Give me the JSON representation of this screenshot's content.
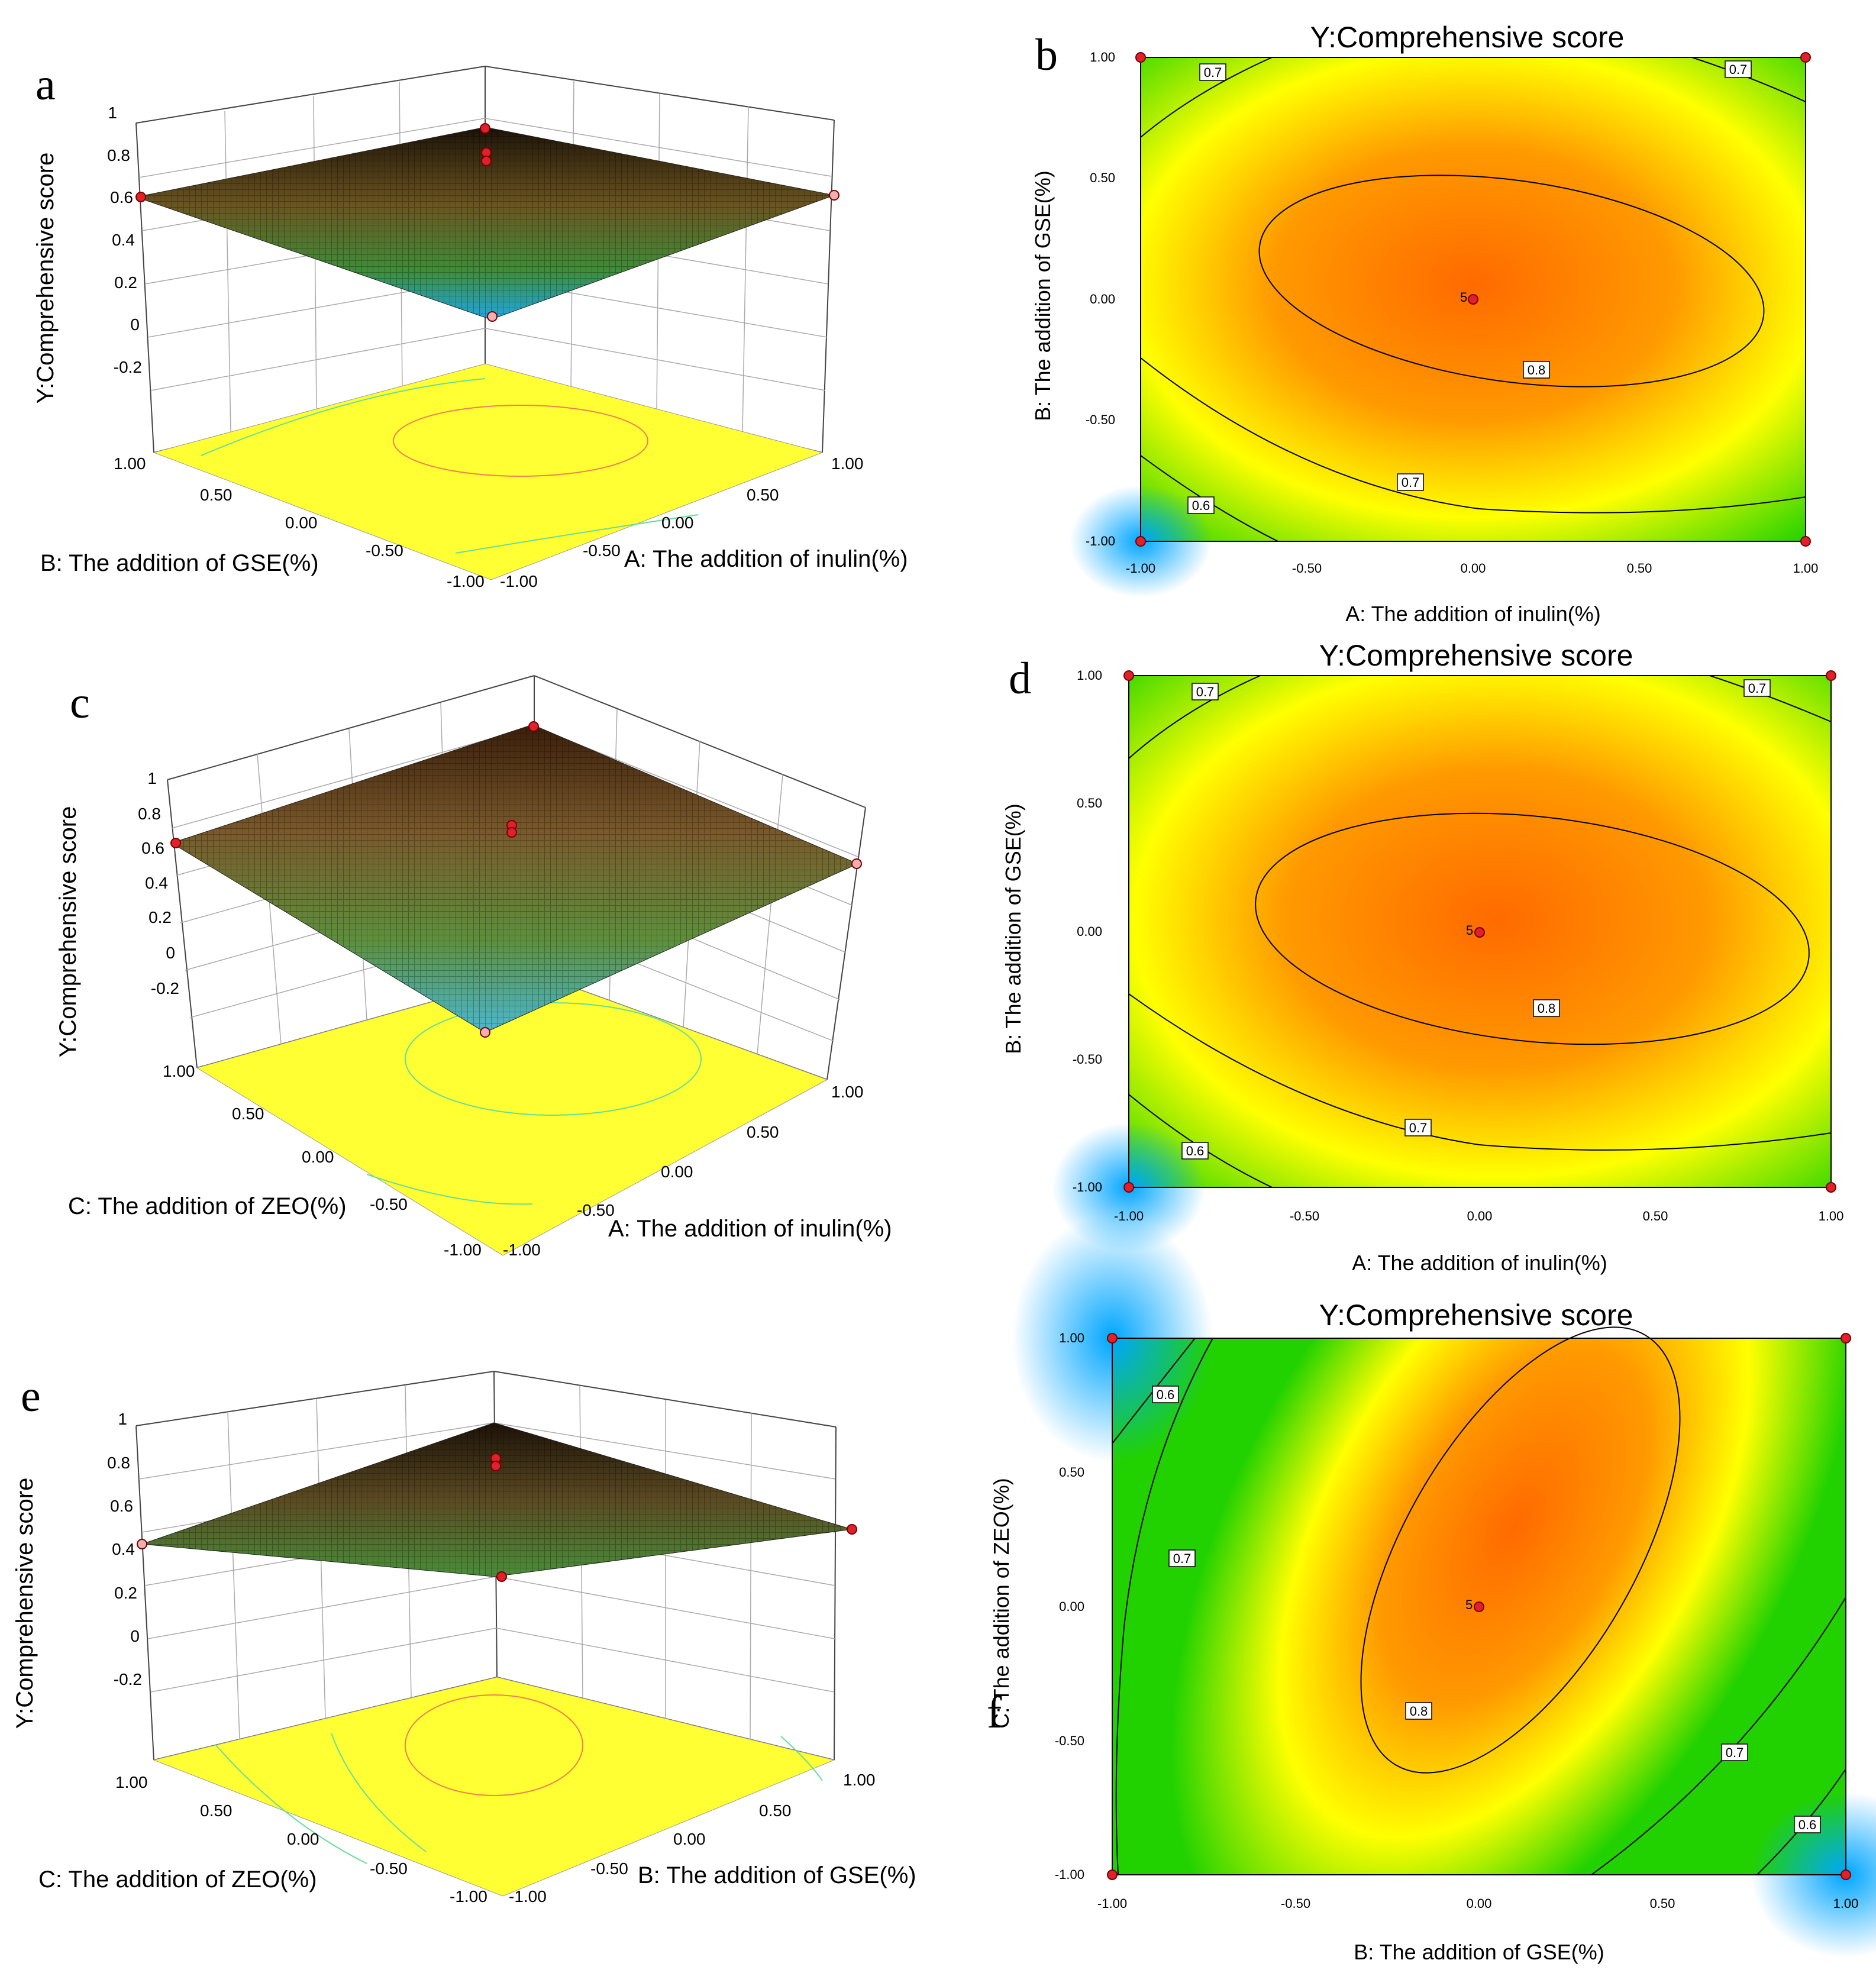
{
  "chart_data": [
    {
      "panel": "a",
      "type": "surface3d",
      "zlabel": "Y:Comprehensive score",
      "xlabel": "A: The addition of inulin(%)",
      "ylabel": "B: The addition of GSE(%)",
      "zticks": [
        "1",
        "0.8",
        "0.6",
        "0.4",
        "0.2",
        "0",
        "-0.2"
      ],
      "xticks": [
        "1.00",
        "0.50",
        "0.00",
        "-0.50",
        "-1.00"
      ],
      "yticks": [
        "1.00",
        "0.50",
        "0.00",
        "-0.50",
        "-1.00"
      ],
      "zlim": [
        -0.2,
        1
      ],
      "colors": {
        "low": "#1ea8e6",
        "mid": "#3f8d3a",
        "high": "#1c1208",
        "floor": "#ffff33"
      }
    },
    {
      "panel": "b",
      "type": "contour",
      "title": "Y:Comprehensive score",
      "xlabel": "A: The addition of inulin(%)",
      "ylabel": "B: The addition of GSE(%)",
      "xticks": [
        "-1.00",
        "-0.50",
        "0.00",
        "0.50",
        "1.00"
      ],
      "yticks": [
        "1.00",
        "0.50",
        "0.00",
        "-0.50",
        "-1.00"
      ],
      "xlim": [
        -1,
        1
      ],
      "ylim": [
        -1,
        1
      ],
      "contour_levels": [
        0.6,
        0.7,
        0.8
      ],
      "contour_labels": [
        "0.7",
        "0.7",
        "0.8",
        "0.7",
        "0.6"
      ],
      "center_point": {
        "x": 0,
        "y": 0,
        "label": "5"
      },
      "design_points": [
        {
          "x": -1,
          "y": 1
        },
        {
          "x": 1,
          "y": 1
        },
        {
          "x": -1,
          "y": -1
        },
        {
          "x": 1,
          "y": -1
        }
      ],
      "colors": {
        "high": "#ff6a00",
        "mid": "#ffff00",
        "low": "#22d200",
        "min": "#00a6ff"
      }
    },
    {
      "panel": "c",
      "type": "surface3d",
      "zlabel": "Y:Comprehensive score",
      "xlabel": "A: The addition of inulin(%)",
      "ylabel": "C: The addition of ZEO(%)",
      "zticks": [
        "1",
        "0.8",
        "0.6",
        "0.4",
        "0.2",
        "0",
        "-0.2"
      ],
      "xticks": [
        "1.00",
        "0.50",
        "0.00",
        "-0.50",
        "-1.00"
      ],
      "yticks": [
        "1.00",
        "0.50",
        "0.00",
        "-0.50",
        "-1.00"
      ],
      "zlim": [
        -0.2,
        1
      ],
      "colors": {
        "low": "#4ab9d0",
        "mid": "#5e8f3c",
        "high": "#3a1e0a",
        "floor": "#ffff33"
      }
    },
    {
      "panel": "d",
      "type": "contour",
      "title": "Y:Comprehensive score",
      "xlabel": "A: The addition of inulin(%)",
      "ylabel": "B: The addition of GSE(%)",
      "xticks": [
        "-1.00",
        "-0.50",
        "0.00",
        "0.50",
        "1.00"
      ],
      "yticks": [
        "1.00",
        "0.50",
        "0.00",
        "-0.50",
        "-1.00"
      ],
      "xlim": [
        -1,
        1
      ],
      "ylim": [
        -1,
        1
      ],
      "contour_levels": [
        0.6,
        0.7,
        0.8
      ],
      "contour_labels": [
        "0.7",
        "0.7",
        "0.8",
        "0.7",
        "0.6"
      ],
      "center_point": {
        "x": 0,
        "y": 0,
        "label": "5"
      },
      "design_points": [
        {
          "x": -1,
          "y": 1
        },
        {
          "x": 1,
          "y": 1
        },
        {
          "x": -1,
          "y": -1
        },
        {
          "x": 1,
          "y": -1
        }
      ],
      "colors": {
        "high": "#ff6a00",
        "mid": "#ffff00",
        "low": "#22d200",
        "min": "#00a6ff"
      }
    },
    {
      "panel": "e",
      "type": "surface3d",
      "zlabel": "Y:Comprehensive score",
      "xlabel": "B: The addition of GSE(%)",
      "ylabel": "C: The addition of ZEO(%)",
      "zticks": [
        "1",
        "0.8",
        "0.6",
        "0.4",
        "0.2",
        "0",
        "-0.2"
      ],
      "xticks": [
        "1.00",
        "0.50",
        "0.00",
        "-0.50",
        "-1.00"
      ],
      "yticks": [
        "1.00",
        "0.50",
        "0.00",
        "-0.50",
        "-1.00"
      ],
      "zlim": [
        -0.2,
        1
      ],
      "colors": {
        "low": "#27a6d6",
        "mid": "#4a8e3a",
        "high": "#1c1208",
        "floor": "#ffff33"
      }
    },
    {
      "panel": "f",
      "type": "contour",
      "title": "Y:Comprehensive score",
      "xlabel": "B: The addition of GSE(%)",
      "ylabel": "C: The addition of ZEO(%)",
      "xticks": [
        "-1.00",
        "-0.50",
        "0.00",
        "0.50",
        "1.00"
      ],
      "yticks": [
        "1.00",
        "0.50",
        "0.00",
        "-0.50",
        "-1.00"
      ],
      "xlim": [
        -1,
        1
      ],
      "ylim": [
        -1,
        1
      ],
      "contour_levels": [
        0.6,
        0.7,
        0.8
      ],
      "contour_labels": [
        "0.6",
        "0.7",
        "0.8",
        "0.7",
        "0.6"
      ],
      "center_point": {
        "x": 0,
        "y": 0,
        "label": "5"
      },
      "design_points": [
        {
          "x": -1,
          "y": 1
        },
        {
          "x": 1,
          "y": 1
        },
        {
          "x": -1,
          "y": -1
        },
        {
          "x": 1,
          "y": -1
        }
      ],
      "colors": {
        "high": "#ff6a00",
        "mid": "#ffff00",
        "low": "#22d200",
        "min": "#00a6ff"
      }
    }
  ]
}
